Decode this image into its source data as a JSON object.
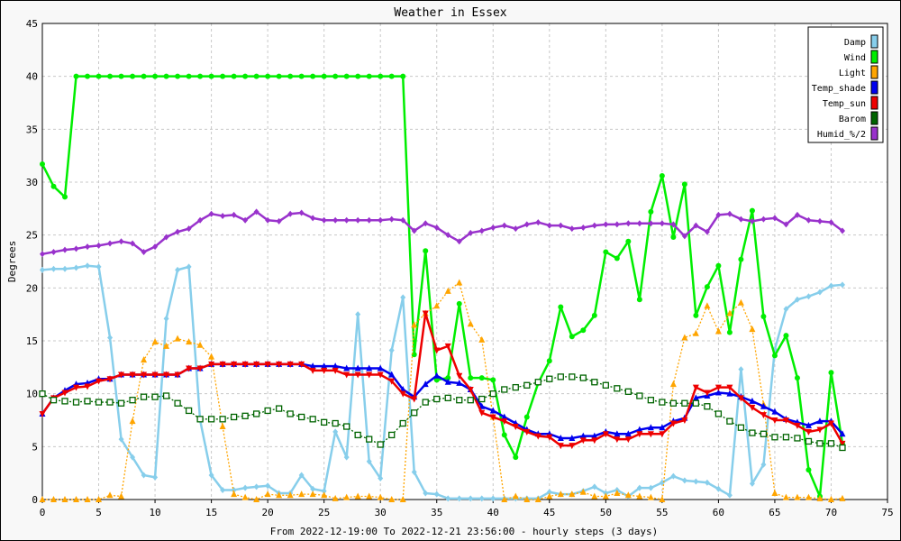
{
  "chart_data": {
    "type": "line",
    "title": "Weather in Essex",
    "ylabel": "Degrees",
    "xlabel": "From 2022-12-19:00 To 2022-12-21 23:56:00 - hourly steps (3 days)",
    "xlim": [
      0,
      75
    ],
    "ylim": [
      0,
      45
    ],
    "xticks": [
      0,
      5,
      10,
      15,
      20,
      25,
      30,
      35,
      40,
      45,
      50,
      55,
      60,
      65,
      70,
      75
    ],
    "yticks": [
      0,
      5,
      10,
      15,
      20,
      25,
      30,
      35,
      40,
      45
    ],
    "grid": true,
    "legend_position": "top-right",
    "x": [
      0,
      1,
      2,
      3,
      4,
      5,
      6,
      7,
      8,
      9,
      10,
      11,
      12,
      13,
      14,
      15,
      16,
      17,
      18,
      19,
      20,
      21,
      22,
      23,
      24,
      25,
      26,
      27,
      28,
      29,
      30,
      31,
      32,
      33,
      34,
      35,
      36,
      37,
      38,
      39,
      40,
      41,
      42,
      43,
      44,
      45,
      46,
      47,
      48,
      49,
      50,
      51,
      52,
      53,
      54,
      55,
      56,
      57,
      58,
      59,
      60,
      61,
      62,
      63,
      64,
      65,
      66,
      67,
      68,
      69,
      70,
      71
    ],
    "series": [
      {
        "name": "Damp",
        "color": "#87ceeb",
        "marker": "diamond",
        "values": [
          21.7,
          21.8,
          21.8,
          21.9,
          22.1,
          22.0,
          15.3,
          5.7,
          4.0,
          2.3,
          2.1,
          17.1,
          21.7,
          22.0,
          7.5,
          2.3,
          0.9,
          0.9,
          1.1,
          1.2,
          1.3,
          0.6,
          0.6,
          2.3,
          1.0,
          0.8,
          6.4,
          4.0,
          17.5,
          3.6,
          2.0,
          14.1,
          19.1,
          2.6,
          0.6,
          0.5,
          0.1,
          0.1,
          0.1,
          0.1,
          0.1,
          0.1,
          0.1,
          0.1,
          0.1,
          0.7,
          0.5,
          0.5,
          0.8,
          1.2,
          0.6,
          0.9,
          0.3,
          1.1,
          1.1,
          1.6,
          2.2,
          1.8,
          1.7,
          1.6,
          1.0,
          0.4,
          12.3,
          1.5,
          3.3,
          14.2,
          18.0,
          18.9,
          19.2,
          19.6,
          20.2,
          20.3
        ]
      },
      {
        "name": "Wind",
        "color": "#00ee00",
        "marker": "circle",
        "values": [
          31.7,
          29.6,
          28.6,
          40,
          40,
          40,
          40,
          40,
          40,
          40,
          40,
          40,
          40,
          40,
          40,
          40,
          40,
          40,
          40,
          40,
          40,
          40,
          40,
          40,
          40,
          40,
          40,
          40,
          40,
          40,
          40,
          40,
          40,
          13.7,
          23.5,
          11.3,
          11.5,
          18.5,
          11.5,
          11.5,
          11.3,
          6.1,
          4.0,
          7.8,
          11.0,
          13.1,
          18.2,
          15.4,
          16.0,
          17.4,
          23.4,
          22.8,
          24.4,
          18.9,
          27.2,
          30.6,
          24.8,
          29.8,
          17.4,
          20.1,
          22.1,
          15.8,
          22.7,
          27.3,
          17.3,
          13.6,
          15.5,
          11.5,
          2.8,
          0.3,
          12.0,
          5.3
        ]
      },
      {
        "name": "Light",
        "color": "#ffa500",
        "marker": "triangle",
        "values": [
          0,
          0,
          0,
          0,
          0,
          0,
          0.4,
          0.3,
          7.4,
          13.2,
          14.9,
          14.5,
          15.2,
          14.9,
          14.6,
          13.5,
          6.9,
          0.5,
          0.2,
          0,
          0.5,
          0.4,
          0.4,
          0.5,
          0.5,
          0.4,
          0.1,
          0.2,
          0.3,
          0.3,
          0.2,
          0,
          0,
          16.5,
          17.6,
          18.3,
          19.7,
          20.5,
          16.6,
          15.1,
          7.8,
          0,
          0.3,
          0,
          0,
          0.3,
          0.5,
          0.5,
          0.7,
          0.3,
          0.3,
          0.6,
          0.4,
          0.3,
          0.2,
          0,
          10.9,
          15.3,
          15.7,
          18.3,
          15.9,
          17.6,
          18.6,
          16.1,
          9.0,
          0.6,
          0.2,
          0.2,
          0.2,
          0.1,
          0,
          0.1
        ]
      },
      {
        "name": "Temp_shade",
        "color": "#0000ee",
        "marker": "triangle",
        "values": [
          8.1,
          9.6,
          10.3,
          10.9,
          11.0,
          11.4,
          11.4,
          11.8,
          11.8,
          11.8,
          11.8,
          11.8,
          11.8,
          12.4,
          12.4,
          12.8,
          12.8,
          12.8,
          12.8,
          12.8,
          12.8,
          12.8,
          12.8,
          12.8,
          12.6,
          12.6,
          12.6,
          12.4,
          12.4,
          12.4,
          12.4,
          11.8,
          10.4,
          9.7,
          10.9,
          11.7,
          11.1,
          11.0,
          10.4,
          8.8,
          8.4,
          7.8,
          7.2,
          6.6,
          6.2,
          6.2,
          5.8,
          5.8,
          6.0,
          6.0,
          6.4,
          6.2,
          6.2,
          6.6,
          6.8,
          6.8,
          7.4,
          7.7,
          9.6,
          9.8,
          10.1,
          10.0,
          9.7,
          9.3,
          8.8,
          8.3,
          7.6,
          7.3,
          7.0,
          7.4,
          7.4,
          6.2
        ]
      },
      {
        "name": "Temp_sun",
        "color": "#ee0000",
        "marker": "triangle-down",
        "values": [
          8.1,
          9.6,
          10.1,
          10.6,
          10.7,
          11.2,
          11.4,
          11.8,
          11.8,
          11.8,
          11.8,
          11.8,
          11.8,
          12.4,
          12.4,
          12.8,
          12.8,
          12.8,
          12.8,
          12.8,
          12.8,
          12.8,
          12.8,
          12.8,
          12.2,
          12.2,
          12.2,
          11.8,
          11.8,
          11.8,
          11.8,
          11.2,
          10.0,
          9.5,
          17.6,
          14.1,
          14.5,
          11.7,
          10.4,
          8.2,
          7.8,
          7.4,
          6.9,
          6.4,
          6.0,
          5.9,
          5.1,
          5.1,
          5.6,
          5.6,
          6.2,
          5.7,
          5.7,
          6.2,
          6.2,
          6.2,
          7.2,
          7.5,
          10.6,
          10.1,
          10.6,
          10.6,
          9.6,
          8.7,
          8.0,
          7.5,
          7.5,
          7.0,
          6.4,
          6.6,
          7.2,
          5.3
        ]
      },
      {
        "name": "Barom",
        "color": "#006400",
        "marker": "square",
        "values": [
          10.0,
          9.4,
          9.3,
          9.2,
          9.3,
          9.2,
          9.2,
          9.1,
          9.4,
          9.7,
          9.7,
          9.8,
          9.1,
          8.4,
          7.6,
          7.6,
          7.6,
          7.8,
          7.9,
          8.1,
          8.4,
          8.6,
          8.1,
          7.8,
          7.6,
          7.3,
          7.2,
          6.9,
          6.1,
          5.7,
          5.2,
          6.1,
          7.2,
          8.2,
          9.2,
          9.5,
          9.6,
          9.4,
          9.4,
          9.5,
          10.0,
          10.4,
          10.6,
          10.8,
          11.1,
          11.4,
          11.6,
          11.6,
          11.5,
          11.1,
          10.8,
          10.5,
          10.2,
          9.8,
          9.4,
          9.2,
          9.1,
          9.1,
          9.1,
          8.8,
          8.1,
          7.4,
          6.8,
          6.3,
          6.2,
          5.9,
          5.9,
          5.8,
          5.5,
          5.3,
          5.3,
          4.9
        ]
      },
      {
        "name": "Humid_%/2",
        "color": "#9932cc",
        "marker": "diamond",
        "values": [
          23.2,
          23.4,
          23.6,
          23.7,
          23.9,
          24.0,
          24.2,
          24.4,
          24.2,
          23.4,
          23.9,
          24.8,
          25.3,
          25.6,
          26.4,
          27.0,
          26.8,
          26.9,
          26.4,
          27.2,
          26.4,
          26.3,
          27.0,
          27.1,
          26.6,
          26.4,
          26.4,
          26.4,
          26.4,
          26.4,
          26.4,
          26.5,
          26.4,
          25.4,
          26.1,
          25.7,
          25.0,
          24.4,
          25.2,
          25.4,
          25.7,
          25.9,
          25.6,
          26.0,
          26.2,
          25.9,
          25.9,
          25.6,
          25.7,
          25.9,
          26.0,
          26.0,
          26.1,
          26.1,
          26.1,
          26.1,
          26.0,
          24.9,
          25.9,
          25.3,
          26.9,
          27.0,
          26.5,
          26.3,
          26.5,
          26.6,
          26.0,
          26.9,
          26.4,
          26.3,
          26.2,
          25.4
        ]
      }
    ]
  }
}
